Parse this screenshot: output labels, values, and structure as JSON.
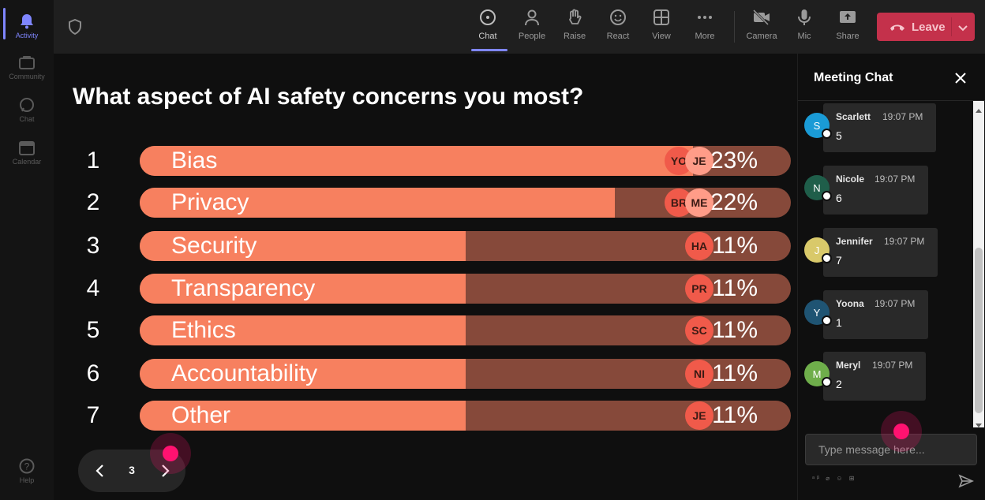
{
  "rail": {
    "items": [
      {
        "label": "Activity"
      },
      {
        "label": "Community"
      },
      {
        "label": "Chat"
      },
      {
        "label": "Calendar"
      },
      {
        "label": "Help"
      }
    ]
  },
  "toolbar": {
    "items": [
      {
        "label": "Chat",
        "icon": "chat-icon"
      },
      {
        "label": "People",
        "icon": "people-icon"
      },
      {
        "label": "Raise",
        "icon": "hand-icon"
      },
      {
        "label": "React",
        "icon": "smile-icon"
      },
      {
        "label": "View",
        "icon": "grid-icon"
      },
      {
        "label": "More",
        "icon": "more-icon"
      },
      {
        "label": "Camera",
        "icon": "camera-off-icon"
      },
      {
        "label": "Mic",
        "icon": "mic-icon"
      },
      {
        "label": "Share",
        "icon": "share-icon"
      }
    ],
    "leave_label": "Leave",
    "leave_color": "#c4314b"
  },
  "poll": {
    "question": "What aspect of AI safety concerns you most?",
    "bar_color": "#f7805f",
    "track_color": "#86493a",
    "options": [
      {
        "num": "1",
        "label": "Bias",
        "percent": "23%",
        "fill": 0.85,
        "voters": [
          "YO",
          "JE"
        ]
      },
      {
        "num": "2",
        "label": "Privacy",
        "percent": "22%",
        "fill": 0.73,
        "voters": [
          "BR",
          "ME"
        ]
      },
      {
        "num": "3",
        "label": "Security",
        "percent": "11%",
        "fill": 0.5,
        "voters": [
          "HA"
        ]
      },
      {
        "num": "4",
        "label": "Transparency",
        "percent": "11%",
        "fill": 0.5,
        "voters": [
          "PR"
        ]
      },
      {
        "num": "5",
        "label": "Ethics",
        "percent": "11%",
        "fill": 0.5,
        "voters": [
          "SC"
        ]
      },
      {
        "num": "6",
        "label": "Accountability",
        "percent": "11%",
        "fill": 0.5,
        "voters": [
          "NI"
        ]
      },
      {
        "num": "7",
        "label": "Other",
        "percent": "11%",
        "fill": 0.5,
        "voters": [
          "JE"
        ]
      }
    ],
    "page": "3"
  },
  "chat": {
    "title": "Meeting Chat",
    "input_placeholder": "Type message here...",
    "tools": "ᵃᵝ ⌀ ☺ ⊞",
    "messages": [
      {
        "initial": "S",
        "name": "Scarlett",
        "time": "19:07 PM",
        "text": "5",
        "color": "#1a9bd6"
      },
      {
        "initial": "N",
        "name": "Nicole",
        "time": "19:07 PM",
        "text": "6",
        "color": "#1f5e4a"
      },
      {
        "initial": "J",
        "name": "Jennifer",
        "time": "19:07 PM",
        "text": "7",
        "color": "#d9c96a"
      },
      {
        "initial": "Y",
        "name": "Yoona",
        "time": "19:07 PM",
        "text": "1",
        "color": "#1f5473"
      },
      {
        "initial": "M",
        "name": "Meryl",
        "time": "19:07 PM",
        "text": "2",
        "color": "#6fae4b"
      }
    ]
  }
}
